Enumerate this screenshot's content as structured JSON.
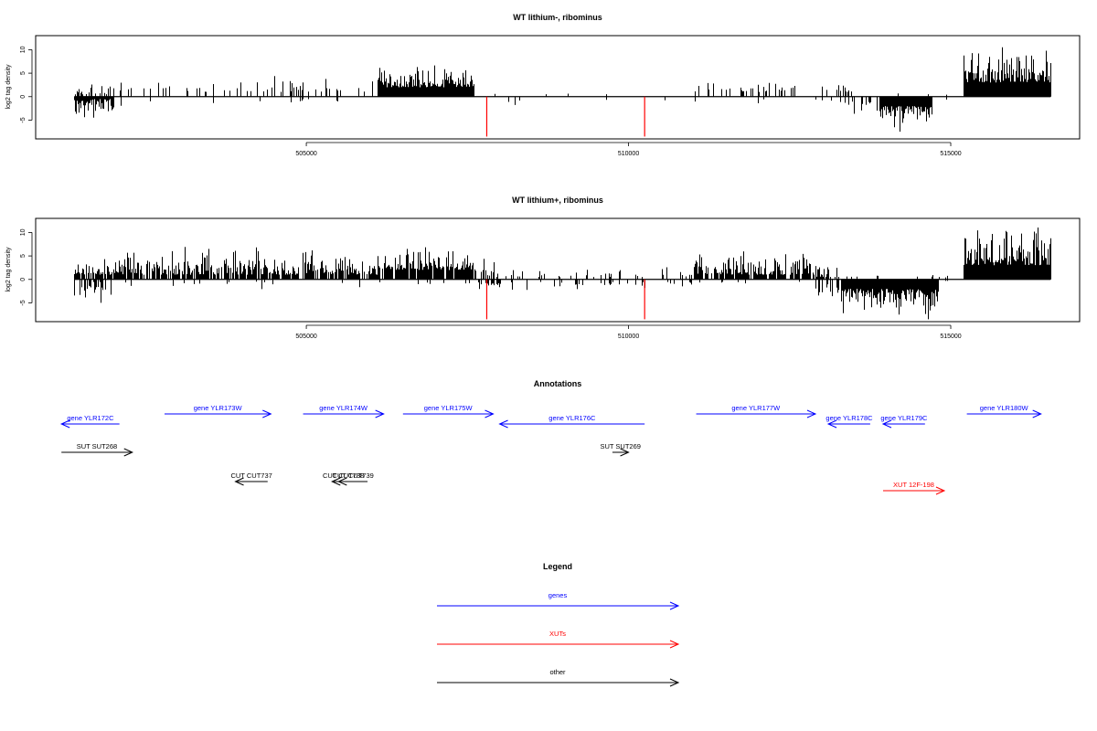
{
  "chart_data": [
    {
      "type": "bar",
      "title": "WT lithium-, ribominus",
      "ylabel": "log2 tag density",
      "xlabel": "",
      "xlim": [
        500800,
        517000
      ],
      "ylim": [
        -9,
        13
      ],
      "x_ticks": [
        505000,
        510000,
        515000
      ],
      "x_tick_labels": [
        "505000",
        "510000",
        "515000"
      ],
      "y_ticks": [
        -5,
        0,
        5,
        10
      ],
      "y_tick_labels": [
        "-5",
        "0",
        "5",
        "10"
      ],
      "series_color": "#000000",
      "marker_color": "#ff0000",
      "red_markers": [
        {
          "x": 507800,
          "y": -8.5
        },
        {
          "x": 510250,
          "y": -8.5
        }
      ],
      "segments": [
        {
          "x0": 501400,
          "x1": 502000,
          "dens": 0.9,
          "pos": 0.5,
          "neg": 3.5,
          "up": [
            0.5,
            2.5
          ],
          "down": [
            0.5,
            5
          ]
        },
        {
          "x0": 502000,
          "x1": 504200,
          "dens": 0.14,
          "pos": 0.9,
          "neg": 0.1,
          "up": [
            1,
            3.5
          ],
          "down": [
            0.3,
            3
          ]
        },
        {
          "x0": 504200,
          "x1": 506100,
          "dens": 0.2,
          "pos": 0.85,
          "neg": 0.15,
          "up": [
            1,
            4.5
          ],
          "down": [
            0.5,
            3
          ]
        },
        {
          "x0": 506100,
          "x1": 507600,
          "dens": 1.0,
          "pos": 1.0,
          "neg": 0.0,
          "up": [
            2,
            7
          ],
          "down": [
            0.5,
            1
          ]
        },
        {
          "x0": 507600,
          "x1": 511000,
          "dens": 0.05,
          "pos": 0.5,
          "neg": 0.5,
          "up": [
            0.5,
            2
          ],
          "down": [
            0.5,
            2.5
          ]
        },
        {
          "x0": 511000,
          "x1": 513400,
          "dens": 0.2,
          "pos": 0.85,
          "neg": 0.15,
          "up": [
            1,
            3.5
          ],
          "down": [
            0.5,
            2
          ]
        },
        {
          "x0": 513400,
          "x1": 513900,
          "dens": 0.4,
          "pos": 0.3,
          "neg": 0.8,
          "up": [
            0.5,
            2
          ],
          "down": [
            1,
            4.5
          ]
        },
        {
          "x0": 513900,
          "x1": 514700,
          "dens": 1.0,
          "pos": 0.05,
          "neg": 1.0,
          "up": [
            0.5,
            1
          ],
          "down": [
            2,
            7
          ]
        },
        {
          "x0": 514700,
          "x1": 515200,
          "dens": 0.05,
          "pos": 0.5,
          "neg": 0.5,
          "up": [
            0.3,
            1
          ],
          "down": [
            0.3,
            1.5
          ]
        },
        {
          "x0": 515200,
          "x1": 516550,
          "dens": 1.0,
          "pos": 1.0,
          "neg": 0.0,
          "up": [
            3,
            10
          ],
          "down": [
            0.5,
            1
          ]
        }
      ]
    },
    {
      "type": "bar",
      "title": "WT lithium+, ribominus",
      "ylabel": "log2 tag density",
      "xlabel": "",
      "xlim": [
        500800,
        517000
      ],
      "ylim": [
        -9,
        13
      ],
      "x_ticks": [
        505000,
        510000,
        515000
      ],
      "x_tick_labels": [
        "505000",
        "510000",
        "515000"
      ],
      "y_ticks": [
        -5,
        0,
        5,
        10
      ],
      "y_tick_labels": [
        "-5",
        "0",
        "5",
        "10"
      ],
      "series_color": "#000000",
      "marker_color": "#ff0000",
      "red_markers": [
        {
          "x": 507800,
          "y": -8.5
        },
        {
          "x": 510250,
          "y": -8.5
        }
      ],
      "segments": [
        {
          "x0": 501400,
          "x1": 502000,
          "dens": 1.0,
          "pos": 0.75,
          "neg": 0.45,
          "up": [
            1,
            4
          ],
          "down": [
            0.5,
            5
          ]
        },
        {
          "x0": 502000,
          "x1": 506100,
          "dens": 0.8,
          "pos": 0.95,
          "neg": 0.05,
          "up": [
            1,
            6.5
          ],
          "down": [
            0.5,
            2.5
          ]
        },
        {
          "x0": 506100,
          "x1": 507600,
          "dens": 1.0,
          "pos": 0.95,
          "neg": 0.05,
          "up": [
            2,
            7
          ],
          "down": [
            0.5,
            1.5
          ]
        },
        {
          "x0": 507600,
          "x1": 508000,
          "dens": 0.8,
          "pos": 0.6,
          "neg": 0.5,
          "up": [
            0.5,
            4
          ],
          "down": [
            0.5,
            3
          ]
        },
        {
          "x0": 508000,
          "x1": 511000,
          "dens": 0.4,
          "pos": 0.6,
          "neg": 0.4,
          "up": [
            0.5,
            3
          ],
          "down": [
            0.5,
            2.5
          ]
        },
        {
          "x0": 511000,
          "x1": 512900,
          "dens": 0.85,
          "pos": 0.95,
          "neg": 0.05,
          "up": [
            1,
            6
          ],
          "down": [
            0.5,
            1
          ]
        },
        {
          "x0": 512900,
          "x1": 513300,
          "dens": 0.7,
          "pos": 0.6,
          "neg": 0.6,
          "up": [
            0.5,
            3
          ],
          "down": [
            1,
            4
          ]
        },
        {
          "x0": 513300,
          "x1": 514800,
          "dens": 1.0,
          "pos": 0.1,
          "neg": 1.0,
          "up": [
            0.5,
            1.5
          ],
          "down": [
            2,
            8
          ]
        },
        {
          "x0": 514800,
          "x1": 515200,
          "dens": 0.05,
          "pos": 0.5,
          "neg": 0.5,
          "up": [
            0.3,
            1
          ],
          "down": [
            0.3,
            1.5
          ]
        },
        {
          "x0": 515200,
          "x1": 516550,
          "dens": 1.0,
          "pos": 1.0,
          "neg": 0.0,
          "up": [
            3,
            10.5
          ],
          "down": [
            0.5,
            1
          ]
        }
      ]
    },
    {
      "type": "annotation-track",
      "title": "Annotations",
      "xlim": [
        500800,
        517000
      ],
      "colors": {
        "genes": "#0000ff",
        "XUTs": "#ff0000",
        "other": "#000000"
      },
      "features": [
        {
          "label": "gene YLR172C",
          "x0": 501200,
          "x1": 502100,
          "strand": "-",
          "row": 1,
          "class": "genes"
        },
        {
          "label": "gene YLR173W",
          "x0": 502800,
          "x1": 504450,
          "strand": "+",
          "row": 0,
          "class": "genes"
        },
        {
          "label": "gene YLR174W",
          "x0": 504950,
          "x1": 506200,
          "strand": "+",
          "row": 0,
          "class": "genes"
        },
        {
          "label": "gene YLR175W",
          "x0": 506500,
          "x1": 507900,
          "strand": "+",
          "row": 0,
          "class": "genes"
        },
        {
          "label": "gene YLR176C",
          "x0": 508000,
          "x1": 510250,
          "strand": "-",
          "row": 1,
          "class": "genes"
        },
        {
          "label": "gene YLR177W",
          "x0": 511050,
          "x1": 512900,
          "strand": "+",
          "row": 0,
          "class": "genes"
        },
        {
          "label": "gene YLR178C",
          "x0": 513100,
          "x1": 513750,
          "strand": "-",
          "row": 1,
          "class": "genes"
        },
        {
          "label": "gene YLR179C",
          "x0": 513950,
          "x1": 514600,
          "strand": "-",
          "row": 1,
          "class": "genes"
        },
        {
          "label": "gene YLR180W",
          "x0": 515250,
          "x1": 516400,
          "strand": "+",
          "row": 0,
          "class": "genes"
        },
        {
          "label": "SUT SUT268",
          "x0": 501200,
          "x1": 502300,
          "strand": "+",
          "row": 2,
          "class": "other"
        },
        {
          "label": "SUT SUT269",
          "x0": 509750,
          "x1": 510000,
          "strand": "+",
          "row": 2,
          "class": "other"
        },
        {
          "label": "CUT CUT737",
          "x0": 503900,
          "x1": 504400,
          "strand": "-",
          "row": 3,
          "class": "other"
        },
        {
          "label": "CUT CUT738",
          "x0": 505400,
          "x1": 505750,
          "strand": "-",
          "row": 3,
          "class": "other"
        },
        {
          "label": "CUT CUT739",
          "x0": 505500,
          "x1": 505950,
          "strand": "-",
          "row": 3,
          "class": "other"
        },
        {
          "label": "XUT 12F-198",
          "x0": 513950,
          "x1": 514900,
          "strand": "+",
          "row": 4,
          "class": "XUTs"
        }
      ]
    },
    {
      "type": "legend",
      "title": "Legend",
      "entries": [
        {
          "label": "genes",
          "color": "#0000ff"
        },
        {
          "label": "XUTs",
          "color": "#ff0000"
        },
        {
          "label": "other",
          "color": "#000000"
        }
      ]
    }
  ]
}
